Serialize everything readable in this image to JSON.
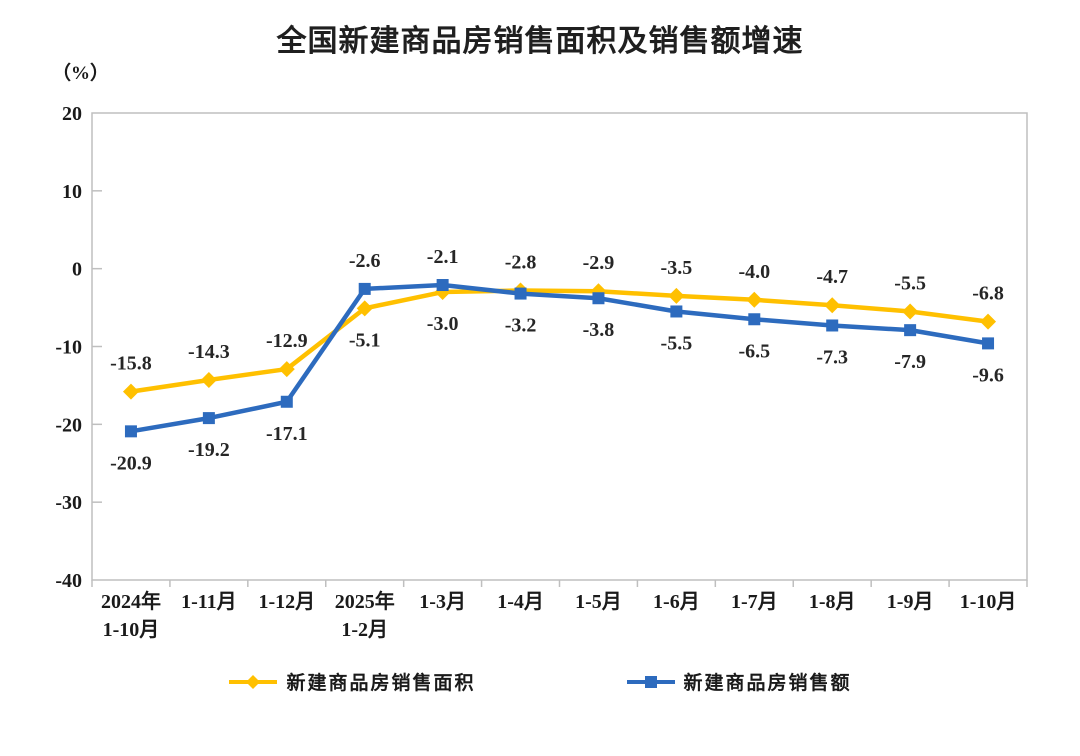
{
  "page": {
    "background": "#ffffff"
  },
  "chart_data": {
    "type": "line",
    "title": "全国新建商品房销售面积及销售额增速",
    "unit_label": "（%）",
    "categories": [
      [
        "2024年",
        "1-10月"
      ],
      [
        "1-11月"
      ],
      [
        "1-12月"
      ],
      [
        "2025年",
        "1-2月"
      ],
      [
        "1-3月"
      ],
      [
        "1-4月"
      ],
      [
        "1-5月"
      ],
      [
        "1-6月"
      ],
      [
        "1-7月"
      ],
      [
        "1-8月"
      ],
      [
        "1-9月"
      ],
      [
        "1-10月"
      ]
    ],
    "series": [
      {
        "name": "新建商品房销售面积",
        "color": "#FFC000",
        "marker": "diamond",
        "values": [
          -15.8,
          -14.3,
          -12.9,
          -5.1,
          -3.0,
          -2.8,
          -2.9,
          -3.5,
          -4.0,
          -4.7,
          -5.5,
          -6.8
        ],
        "labels": [
          "-15.8",
          "-14.3",
          "-12.9",
          "-5.1",
          "-3.0",
          "-2.8",
          "-2.9",
          "-3.5",
          "-4.0",
          "-4.7",
          "-5.5",
          "-6.8"
        ]
      },
      {
        "name": "新建商品房销售额",
        "color": "#2D6BBE",
        "marker": "square",
        "values": [
          -20.9,
          -19.2,
          -17.1,
          -2.6,
          -2.1,
          -3.2,
          -3.8,
          -5.5,
          -6.5,
          -7.3,
          -7.9,
          -9.6
        ],
        "labels": [
          "-20.9",
          "-19.2",
          "-17.1",
          "-2.6",
          "-2.1",
          "-3.2",
          "-3.8",
          "-5.5",
          "-6.5",
          "-7.3",
          "-7.9",
          "-9.6"
        ]
      }
    ],
    "ylim": [
      -40,
      20
    ],
    "yticks": [
      20,
      10,
      0,
      -10,
      -20,
      -30,
      -40
    ],
    "grid": false,
    "data_labels": true,
    "legend_position": "bottom",
    "axis_color": "#BFBFBF",
    "text_color": "#1a1a1a",
    "label_color": "#262626"
  }
}
